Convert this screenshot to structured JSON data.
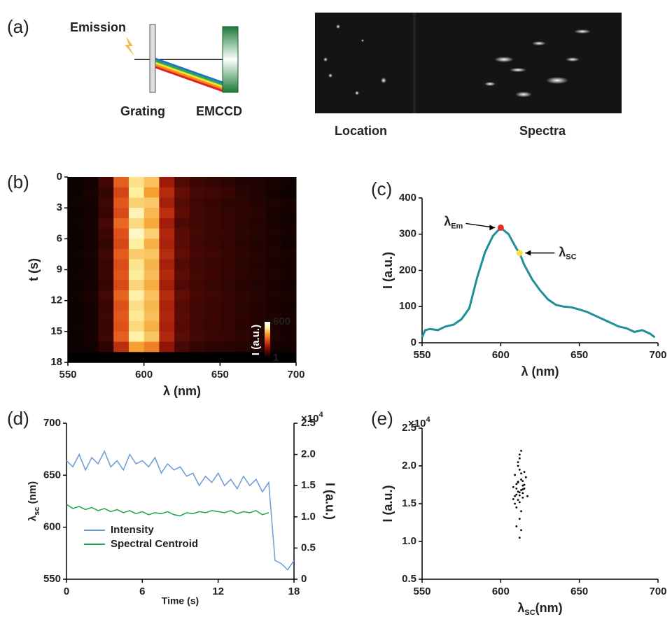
{
  "panel_a": {
    "panel": "(a)",
    "emission": "Emission",
    "grating": "Grating",
    "detector": "EMCCD",
    "location": "Location",
    "spectra": "Spectra"
  },
  "chart_data": [
    {
      "type": "heatmap",
      "panel": "(b)",
      "x_label": "λ (nm)",
      "y_label": "t (s)",
      "xlim": [
        550,
        700
      ],
      "xticks": [
        550,
        600,
        650,
        700
      ],
      "ylim": [
        18,
        0
      ],
      "yticks": [
        0,
        3,
        6,
        9,
        12,
        15,
        18
      ],
      "x": [
        555,
        565,
        575,
        585,
        595,
        605,
        615,
        625,
        635,
        645,
        655,
        665,
        675,
        685,
        695
      ],
      "y": [
        0.5,
        1.5,
        2.5,
        3.5,
        4.5,
        5.5,
        6.5,
        7.5,
        8.5,
        9.5,
        10.5,
        11.5,
        12.5,
        13.5,
        14.5,
        15.5,
        16.5,
        17.5
      ],
      "z": [
        [
          15,
          25,
          90,
          320,
          480,
          440,
          200,
          110,
          80,
          70,
          60,
          50,
          40,
          35,
          25
        ],
        [
          20,
          35,
          70,
          280,
          500,
          400,
          230,
          130,
          95,
          85,
          75,
          55,
          45,
          30,
          20
        ],
        [
          25,
          30,
          85,
          310,
          460,
          450,
          210,
          115,
          85,
          75,
          65,
          60,
          50,
          40,
          30
        ],
        [
          18,
          28,
          75,
          290,
          520,
          430,
          240,
          125,
          90,
          80,
          70,
          65,
          55,
          35,
          28
        ],
        [
          22,
          32,
          95,
          330,
          470,
          410,
          205,
          105,
          88,
          78,
          68,
          58,
          48,
          38,
          26
        ],
        [
          20,
          30,
          80,
          300,
          540,
          460,
          225,
          120,
          92,
          82,
          72,
          62,
          52,
          42,
          32
        ],
        [
          16,
          26,
          70,
          285,
          500,
          420,
          215,
          118,
          86,
          76,
          66,
          56,
          46,
          36,
          24
        ],
        [
          24,
          34,
          88,
          315,
          455,
          445,
          235,
          128,
          94,
          84,
          74,
          64,
          54,
          44,
          34
        ],
        [
          19,
          29,
          78,
          295,
          485,
          425,
          212,
          112,
          89,
          79,
          69,
          59,
          49,
          39,
          29
        ],
        [
          21,
          31,
          82,
          305,
          495,
          435,
          228,
          122,
          91,
          81,
          71,
          61,
          51,
          41,
          31
        ],
        [
          17,
          27,
          72,
          288,
          465,
          415,
          208,
          108,
          87,
          77,
          67,
          57,
          47,
          37,
          27
        ],
        [
          23,
          33,
          92,
          325,
          510,
          440,
          232,
          126,
          93,
          83,
          73,
          63,
          53,
          43,
          33
        ],
        [
          20,
          30,
          76,
          298,
          475,
          428,
          218,
          116,
          88,
          78,
          68,
          58,
          48,
          38,
          28
        ],
        [
          18,
          28,
          84,
          312,
          490,
          438,
          222,
          119,
          90,
          80,
          70,
          60,
          50,
          40,
          30
        ],
        [
          22,
          32,
          79,
          302,
          470,
          420,
          214,
          114,
          86,
          76,
          66,
          56,
          46,
          36,
          26
        ],
        [
          19,
          29,
          86,
          318,
          505,
          445,
          226,
          121,
          92,
          82,
          72,
          62,
          52,
          42,
          32
        ],
        [
          14,
          22,
          60,
          240,
          400,
          360,
          180,
          95,
          70,
          62,
          55,
          48,
          40,
          32,
          24
        ],
        [
          3,
          3,
          4,
          5,
          6,
          6,
          5,
          4,
          3,
          3,
          3,
          3,
          2,
          2,
          2
        ]
      ],
      "zlim": [
        1,
        600
      ],
      "colorbar_ticks": [
        600,
        1
      ],
      "colorbar_label": "I (a.u.)",
      "colorscale": [
        "#000000",
        "#4a0804",
        "#a01a08",
        "#e0501a",
        "#f5a030",
        "#fff0a0",
        "#ffffff"
      ]
    },
    {
      "type": "line",
      "panel": "(c)",
      "x_label": "λ (nm)",
      "y_label": "I (a.u.)",
      "xlim": [
        550,
        700
      ],
      "xticks": [
        550,
        600,
        650,
        700
      ],
      "ylim": [
        0,
        400
      ],
      "yticks": [
        0,
        100,
        200,
        300,
        400
      ],
      "color": "#1f8f96",
      "x": [
        550,
        552,
        555,
        560,
        565,
        570,
        575,
        580,
        585,
        590,
        595,
        600,
        605,
        610,
        612,
        615,
        620,
        625,
        630,
        635,
        640,
        645,
        650,
        655,
        660,
        665,
        670,
        675,
        680,
        685,
        690,
        695,
        698
      ],
      "values": [
        15,
        35,
        38,
        35,
        45,
        50,
        65,
        95,
        180,
        250,
        295,
        318,
        300,
        260,
        248,
        215,
        175,
        145,
        120,
        105,
        100,
        98,
        92,
        85,
        75,
        65,
        55,
        45,
        40,
        30,
        35,
        25,
        15
      ],
      "markers": [
        {
          "x": 600,
          "y": 318,
          "color": "#e8302a",
          "label": "λ",
          "sub": "Em"
        },
        {
          "x": 612,
          "y": 248,
          "color": "#f3e23a",
          "label": "λ",
          "sub": "SC"
        }
      ]
    },
    {
      "type": "line",
      "panel": "(d)",
      "x_label": "Time (s)",
      "y_label": "λ",
      "y_label_sub": "sc",
      "y_label_unit": " (nm)",
      "y2_label": "I (a.u.)",
      "xlim": [
        0,
        18
      ],
      "xticks": [
        0,
        6,
        12,
        18
      ],
      "ylim": [
        550,
        700
      ],
      "yticks": [
        550,
        600,
        650,
        700
      ],
      "y2lim": [
        0,
        25000
      ],
      "y2ticks": [
        0,
        {
          "value": 5000,
          "label": "0.5"
        },
        {
          "value": 10000,
          "label": "1.0"
        },
        {
          "value": 15000,
          "label": "1.5"
        },
        {
          "value": 20000,
          "label": "2.0"
        },
        {
          "value": 25000,
          "label": "2.5"
        }
      ],
      "multiplier": "×10",
      "multiplier_exp": "4",
      "legend": "lower left",
      "x": [
        0,
        0.5,
        1,
        1.5,
        2,
        2.5,
        3,
        3.5,
        4,
        4.5,
        5,
        5.5,
        6,
        6.5,
        7,
        7.5,
        8,
        8.5,
        9,
        9.5,
        10,
        10.5,
        11,
        11.5,
        12,
        12.5,
        13,
        13.5,
        14,
        14.5,
        15,
        15.5,
        16,
        16.5,
        17,
        17.5,
        18
      ],
      "series": [
        {
          "name": "Intensity",
          "color": "#6a9bd3",
          "axis": "y2",
          "values": [
            19000,
            18000,
            20000,
            17500,
            19500,
            18500,
            20500,
            18000,
            19000,
            17500,
            20000,
            18500,
            19000,
            18000,
            19500,
            17000,
            18500,
            17500,
            18000,
            16500,
            17000,
            15000,
            16500,
            15500,
            17000,
            15000,
            16000,
            14500,
            16500,
            15000,
            16000,
            14000,
            15500,
            3000,
            2500,
            1500,
            3000
          ]
        },
        {
          "name": "Spectral Centroid",
          "color": "#1aa84a",
          "values": [
            622,
            618,
            620,
            617,
            619,
            616,
            618,
            615,
            617,
            614,
            616,
            613,
            615,
            612,
            614,
            613,
            615,
            612,
            611,
            614,
            613,
            615,
            614,
            616,
            615,
            614,
            616,
            613,
            615,
            614,
            616,
            612,
            614,
            null,
            null,
            null,
            null
          ]
        }
      ]
    },
    {
      "type": "scatter",
      "panel": "(e)",
      "x_label": "λ",
      "x_label_sub": "SC",
      "x_label_unit": "(nm)",
      "y_label": "I (a.u.)",
      "xlim": [
        550,
        700
      ],
      "xticks": [
        550,
        600,
        650,
        700
      ],
      "ylim": [
        5000,
        25000
      ],
      "yticks": [
        {
          "value": 5000,
          "label": "0.5"
        },
        {
          "value": 10000,
          "label": "1.0"
        },
        {
          "value": 15000,
          "label": "1.5"
        },
        {
          "value": 20000,
          "label": "2.0"
        },
        {
          "value": 25000,
          "label": "2.5"
        }
      ],
      "multiplier": "×10",
      "multiplier_exp": "4",
      "color": "#000000",
      "x": [
        610,
        612,
        614,
        611,
        613,
        609,
        615,
        612,
        610,
        613,
        611,
        614,
        608,
        612,
        616,
        610,
        613,
        611,
        609,
        614,
        612,
        615,
        610,
        613,
        611,
        612,
        617,
        609,
        612,
        614,
        611,
        613,
        610,
        612,
        615,
        608,
        613,
        611,
        614,
        612
      ],
      "values": [
        17000,
        16500,
        18000,
        15500,
        19000,
        16000,
        17500,
        21000,
        14500,
        16800,
        20000,
        15800,
        17200,
        13000,
        18500,
        16200,
        22000,
        17800,
        15000,
        16400,
        19500,
        17000,
        12000,
        18200,
        16600,
        10500,
        16000,
        18800,
        15200,
        17400,
        20500,
        14000,
        17600,
        16100,
        19200,
        15600,
        11500,
        17900,
        16900,
        21500
      ]
    }
  ]
}
